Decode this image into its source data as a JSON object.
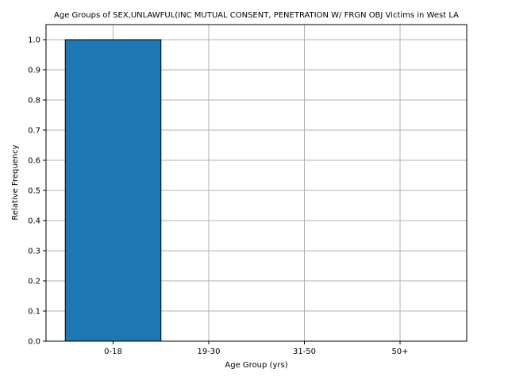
{
  "chart_data": {
    "type": "bar",
    "title": "Age Groups of SEX,UNLAWFUL(INC MUTUAL CONSENT, PENETRATION W/ FRGN OBJ Victims in West LA",
    "xlabel": "Age Group (yrs)",
    "ylabel": "Relative Frequency",
    "categories": [
      "0-18",
      "19-30",
      "31-50",
      "50+"
    ],
    "values": [
      1.0,
      0.0,
      0.0,
      0.0
    ],
    "ylim": [
      0,
      1.05
    ],
    "yticks": [
      0.0,
      0.1,
      0.2,
      0.3,
      0.4,
      0.5,
      0.6,
      0.7,
      0.8,
      0.9,
      1.0
    ],
    "ytick_labels": [
      "0.0",
      "0.1",
      "0.2",
      "0.3",
      "0.4",
      "0.5",
      "0.6",
      "0.7",
      "0.8",
      "0.9",
      "1.0"
    ],
    "grid": true,
    "legend": "none",
    "colors": {
      "bar": "#1f77b4",
      "bar_edge": "#000000",
      "grid": "#b0b0b0",
      "axes": "#000000"
    }
  }
}
